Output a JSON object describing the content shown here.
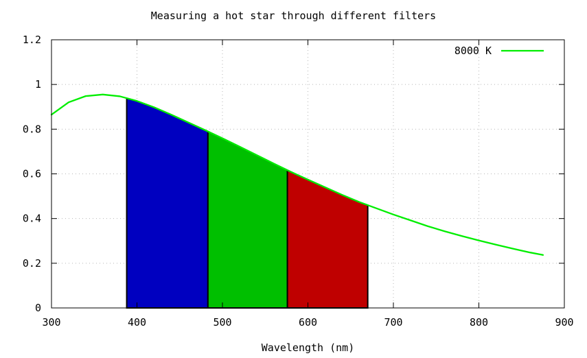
{
  "chart_data": {
    "type": "area",
    "title": "Measuring a hot star through different filters",
    "xlabel": "Wavelength (nm)",
    "ylabel": "",
    "xlim": [
      300,
      900
    ],
    "ylim": [
      0,
      1.2
    ],
    "x_ticks": [
      300,
      400,
      500,
      600,
      700,
      800,
      900
    ],
    "y_ticks": [
      0,
      0.2,
      0.4,
      0.6,
      0.8,
      1,
      1.2
    ],
    "grid": true,
    "legend_position": "top-right",
    "series": [
      {
        "name": "8000 K",
        "color": "#00ee00",
        "x": [
          300,
          320,
          340,
          360,
          380,
          400,
          420,
          440,
          460,
          480,
          500,
          520,
          540,
          560,
          580,
          600,
          620,
          640,
          660,
          680,
          700,
          720,
          740,
          760,
          780,
          800,
          820,
          840,
          860,
          875
        ],
        "y": [
          0.865,
          0.92,
          0.948,
          0.955,
          0.947,
          0.926,
          0.898,
          0.865,
          0.83,
          0.795,
          0.759,
          0.722,
          0.684,
          0.646,
          0.609,
          0.574,
          0.54,
          0.506,
          0.474,
          0.446,
          0.418,
          0.392,
          0.366,
          0.343,
          0.322,
          0.302,
          0.283,
          0.265,
          0.248,
          0.237
        ]
      }
    ],
    "filters": [
      {
        "color": "#0000c0",
        "start": 388,
        "end": 483
      },
      {
        "color": "#00bf00",
        "start": 483,
        "end": 576
      },
      {
        "color": "#bf0000",
        "start": 576,
        "end": 670
      }
    ]
  }
}
